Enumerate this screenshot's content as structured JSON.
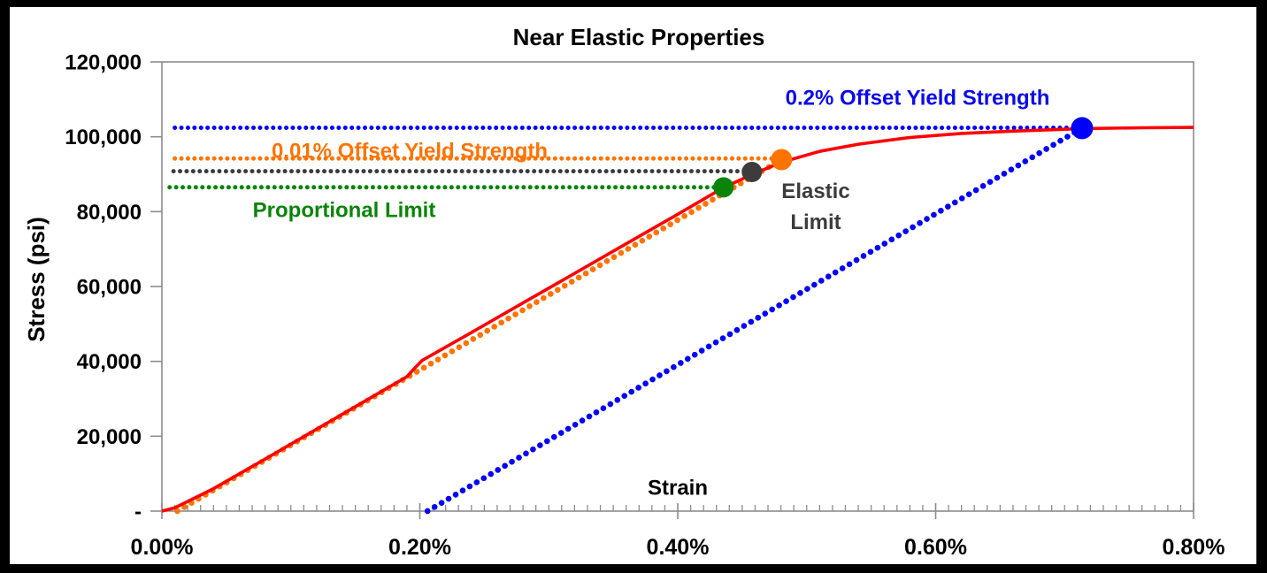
{
  "chart_data": {
    "type": "line",
    "title": "Near Elastic Properties",
    "xlabel": "Strain",
    "ylabel": "Stress (psi)",
    "xlim_percent": [
      0.0,
      0.8
    ],
    "ylim": [
      0,
      120000
    ],
    "grid": "off",
    "legend": "none",
    "axis_color": "#8C8C8C",
    "x_ticks": [
      {
        "value": 0.0,
        "label": "0.00%"
      },
      {
        "value": 0.2,
        "label": "0.20%"
      },
      {
        "value": 0.4,
        "label": "0.40%"
      },
      {
        "value": 0.6,
        "label": "0.60%"
      },
      {
        "value": 0.8,
        "label": "0.80%"
      }
    ],
    "x_minor_tick_step_percent": 0.01,
    "y_ticks": [
      {
        "value": 0,
        "label": "-"
      },
      {
        "value": 20000,
        "label": "20,000"
      },
      {
        "value": 40000,
        "label": "40,000"
      },
      {
        "value": 60000,
        "label": "60,000"
      },
      {
        "value": 80000,
        "label": "80,000"
      },
      {
        "value": 100000,
        "label": "100,000"
      },
      {
        "value": 120000,
        "label": "120,000"
      }
    ],
    "series": [
      {
        "name": "yield-02-strength-hline",
        "color": "#0000FF",
        "style": "dotted",
        "dot": 5,
        "gap": 7.4,
        "points": [
          [
            0.01,
            102400
          ],
          [
            0.7135,
            102400
          ]
        ]
      },
      {
        "name": "yield-001-strength-hline",
        "color": "#FF7300",
        "style": "dotted",
        "dot": 5,
        "gap": 7.4,
        "points": [
          [
            0.01,
            94200
          ],
          [
            0.4805,
            94200
          ]
        ]
      },
      {
        "name": "elastic-limit-hline",
        "color": "#3C3C3C",
        "style": "dotted",
        "dot": 5,
        "gap": 7.4,
        "points": [
          [
            0.009,
            90800
          ],
          [
            0.4575,
            90800
          ]
        ]
      },
      {
        "name": "proportional-limit-hline",
        "color": "#098409",
        "style": "dotted",
        "dot": 5,
        "gap": 7.4,
        "points": [
          [
            0.006,
            86500
          ],
          [
            0.4355,
            86500
          ]
        ]
      },
      {
        "name": "offset-02-elastic-slope",
        "color": "#0000FF",
        "style": "dotted",
        "dot": 6.6,
        "gap": 9.2,
        "points": [
          [
            0.206,
            0
          ],
          [
            0.7135,
            102300
          ]
        ]
      },
      {
        "name": "offset-001-elastic-slope",
        "color": "#FF7300",
        "style": "dotted",
        "dot": 6.6,
        "gap": 9.2,
        "points": [
          [
            0.012,
            0
          ],
          [
            0.4805,
            93900
          ]
        ]
      },
      {
        "name": "stress-strain-curve",
        "color": "#FE0000",
        "style": "solid",
        "width": 3.6,
        "points": [
          [
            0.0,
            0
          ],
          [
            0.01,
            900
          ],
          [
            0.04,
            6000
          ],
          [
            0.08,
            13900
          ],
          [
            0.12,
            21900
          ],
          [
            0.16,
            29900
          ],
          [
            0.19,
            35900
          ],
          [
            0.196,
            38200
          ],
          [
            0.202,
            40300
          ],
          [
            0.24,
            47700
          ],
          [
            0.28,
            55600
          ],
          [
            0.32,
            63500
          ],
          [
            0.36,
            71400
          ],
          [
            0.4,
            79300
          ],
          [
            0.4355,
            86400
          ],
          [
            0.4575,
            89900
          ],
          [
            0.4805,
            93200
          ],
          [
            0.51,
            96100
          ],
          [
            0.54,
            98000
          ],
          [
            0.58,
            99800
          ],
          [
            0.62,
            100900
          ],
          [
            0.66,
            101500
          ],
          [
            0.7,
            102000
          ],
          [
            0.7135,
            102200
          ],
          [
            0.76,
            102400
          ],
          [
            0.8,
            102500
          ]
        ]
      }
    ],
    "markers": [
      {
        "name": "proportional-limit-point",
        "color": "#098409",
        "x": 0.4355,
        "y": 86500,
        "r": 11.5
      },
      {
        "name": "elastic-limit-point",
        "color": "#3C3C3C",
        "x": 0.4575,
        "y": 90600,
        "r": 11.5
      },
      {
        "name": "yield-001-point",
        "color": "#FF7300",
        "x": 0.4805,
        "y": 93900,
        "r": 12
      },
      {
        "name": "yield-02-point",
        "color": "#0000FF",
        "x": 0.7135,
        "y": 102300,
        "r": 12.5
      }
    ],
    "annotations": [
      {
        "key": "yield02-label",
        "lines": [
          "0.2% Offset Yield Strength"
        ],
        "color": "#0A0AE8",
        "x": 0.586,
        "y": 110000
      },
      {
        "key": "yield001-label",
        "lines": [
          "0.01% Offset Yield Strength"
        ],
        "color": "#FF7300",
        "x": 0.192,
        "y": 96000
      },
      {
        "key": "proportional-label",
        "lines": [
          "Proportional Limit"
        ],
        "color": "#098409",
        "x": 0.141,
        "y": 80000
      },
      {
        "key": "elastic-label",
        "lines": [
          "Elastic",
          "Limit"
        ],
        "color": "#3C3C3C",
        "x": 0.507,
        "y": 81000
      },
      {
        "key": "strain-axis-label",
        "lines": [
          "Strain"
        ],
        "color": "#000000",
        "x": 0.4,
        "y": 5900
      }
    ]
  }
}
